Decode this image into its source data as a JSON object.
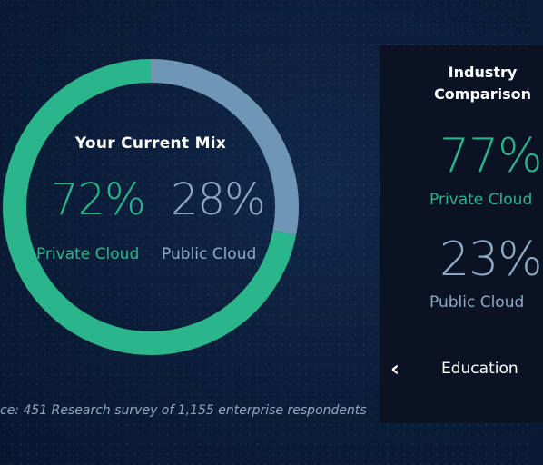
{
  "current_mix": {
    "title": "Your Current Mix",
    "private_value": "72%",
    "private_label": "Private Cloud",
    "public_value": "28%",
    "public_label": "Public Cloud",
    "private_fraction": 0.72,
    "public_fraction": 0.28
  },
  "industry": {
    "title_line1": "Industry",
    "title_line2": "Comparison",
    "private_value": "77%",
    "private_label": "Private Cloud",
    "public_value": "23%",
    "public_label": "Public Cloud",
    "selected_industry": "Education",
    "prev_icon": "chevron-left-icon"
  },
  "source_note": "ce: 451 Research survey of 1,155 enterprise respondents",
  "colors": {
    "private": "#2bb58a",
    "public": "#8ea9c3",
    "background": "#0b1d38",
    "panel": "#0a1224"
  }
}
